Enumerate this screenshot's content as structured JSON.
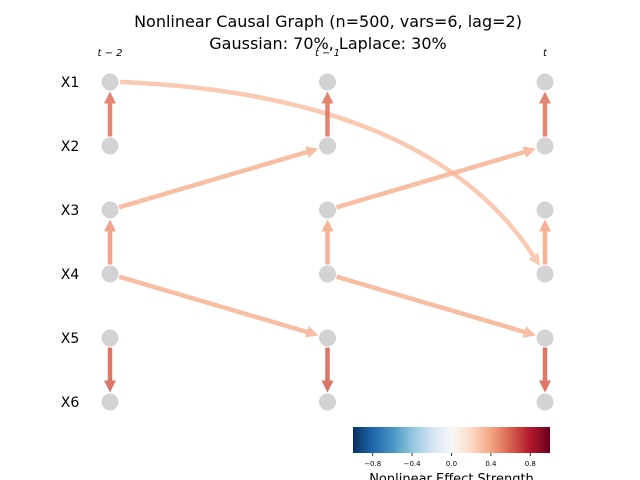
{
  "title": {
    "line1": "Nonlinear Causal Graph (n=500, vars=6, lag=2)",
    "line2": "Gaussian: 70%, Laplace: 30%"
  },
  "variables": [
    "X1",
    "X2",
    "X3",
    "X4",
    "X5",
    "X6"
  ],
  "time_labels": [
    "t − 2",
    "t − 1",
    "t"
  ],
  "node_color": "#d3d3d3",
  "edges": [
    {
      "from": {
        "var": "X2",
        "t": 0
      },
      "to": {
        "var": "X1",
        "t": 0
      },
      "strength": 0.55,
      "curved": false
    },
    {
      "from": {
        "var": "X4",
        "t": 0
      },
      "to": {
        "var": "X3",
        "t": 0
      },
      "strength": 0.45,
      "curved": false
    },
    {
      "from": {
        "var": "X5",
        "t": 0
      },
      "to": {
        "var": "X6",
        "t": 0
      },
      "strength": 0.6,
      "curved": false
    },
    {
      "from": {
        "var": "X3",
        "t": 0
      },
      "to": {
        "var": "X2",
        "t": 1
      },
      "strength": 0.35,
      "curved": false
    },
    {
      "from": {
        "var": "X4",
        "t": 0
      },
      "to": {
        "var": "X5",
        "t": 1
      },
      "strength": 0.35,
      "curved": false
    },
    {
      "from": {
        "var": "X1",
        "t": 0
      },
      "to": {
        "var": "X4",
        "t": 2
      },
      "strength": 0.3,
      "curved": true
    },
    {
      "from": {
        "var": "X2",
        "t": 1
      },
      "to": {
        "var": "X1",
        "t": 1
      },
      "strength": 0.55,
      "curved": false
    },
    {
      "from": {
        "var": "X4",
        "t": 1
      },
      "to": {
        "var": "X3",
        "t": 1
      },
      "strength": 0.4,
      "curved": false
    },
    {
      "from": {
        "var": "X5",
        "t": 1
      },
      "to": {
        "var": "X6",
        "t": 1
      },
      "strength": 0.6,
      "curved": false
    },
    {
      "from": {
        "var": "X3",
        "t": 1
      },
      "to": {
        "var": "X2",
        "t": 2
      },
      "strength": 0.35,
      "curved": false
    },
    {
      "from": {
        "var": "X4",
        "t": 1
      },
      "to": {
        "var": "X5",
        "t": 2
      },
      "strength": 0.35,
      "curved": false
    },
    {
      "from": {
        "var": "X2",
        "t": 2
      },
      "to": {
        "var": "X1",
        "t": 2
      },
      "strength": 0.55,
      "curved": false
    },
    {
      "from": {
        "var": "X4",
        "t": 2
      },
      "to": {
        "var": "X3",
        "t": 2
      },
      "strength": 0.4,
      "curved": false
    },
    {
      "from": {
        "var": "X5",
        "t": 2
      },
      "to": {
        "var": "X6",
        "t": 2
      },
      "strength": 0.6,
      "curved": false
    }
  ],
  "colorbar": {
    "label": "Nonlinear Effect Strength",
    "colormap": "RdBu_r",
    "range": [
      -1,
      1
    ],
    "ticks": [
      "−0.8",
      "−0.4",
      "0.0",
      "0.4",
      "0.8"
    ],
    "tick_values": [
      -0.8,
      -0.4,
      0.0,
      0.4,
      0.8
    ],
    "stops": [
      "#053061",
      "#2166ac",
      "#4393c3",
      "#92c5de",
      "#d1e5f0",
      "#f7f7f7",
      "#fddbc7",
      "#f4a582",
      "#d6604d",
      "#b2182b",
      "#67001f"
    ]
  }
}
